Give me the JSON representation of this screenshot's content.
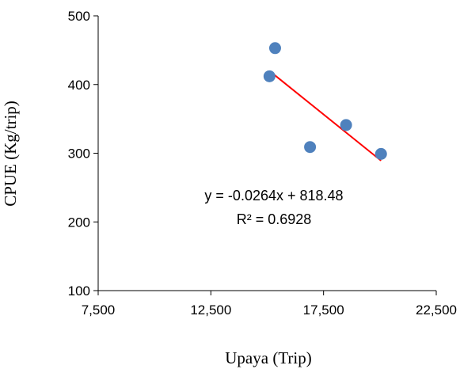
{
  "chart_data": {
    "type": "scatter",
    "xlabel": "Upaya (Trip)",
    "ylabel": "CPUE (Kg/trip)",
    "xlim": [
      7500,
      22500
    ],
    "ylim": [
      100,
      500
    ],
    "x_ticks": [
      7500,
      12500,
      17500,
      22500
    ],
    "x_tick_labels": [
      "7,500",
      "12,500",
      "17,500",
      "22,500"
    ],
    "y_ticks": [
      100,
      200,
      300,
      400,
      500
    ],
    "y_tick_labels": [
      "100",
      "200",
      "300",
      "400",
      "500"
    ],
    "grid": false,
    "series": [
      {
        "x": [
          15100,
          15350,
          16900,
          18500,
          20050
        ],
        "y": [
          412,
          453,
          309,
          341,
          299
        ],
        "color": "#4f81bd"
      }
    ],
    "trendline": {
      "type": "linear",
      "slope": -0.0264,
      "intercept": 818.48,
      "x_range": [
        15100,
        20050
      ],
      "color": "#ff0000"
    },
    "annotations": {
      "equation": "y = -0.0264x + 818.48",
      "r_squared": "R² = 0.6928"
    }
  }
}
